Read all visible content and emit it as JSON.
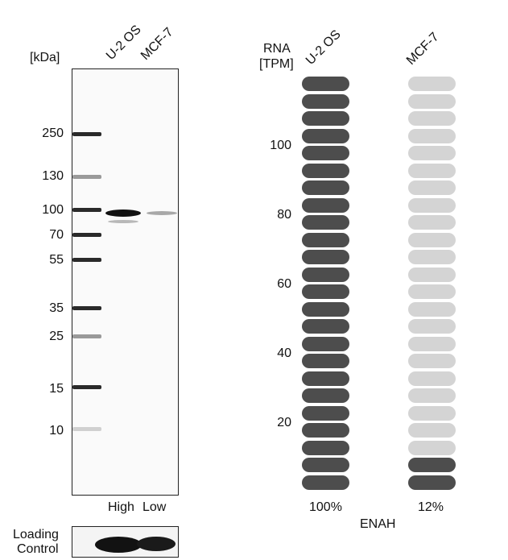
{
  "western_blot": {
    "unit_label": "[kDa]",
    "lanes": [
      "U-2 OS",
      "MCF-7"
    ],
    "markers": [
      "250",
      "130",
      "100",
      "70",
      "55",
      "35",
      "25",
      "15",
      "10"
    ],
    "lane_expression": [
      "High",
      "Low"
    ],
    "loading_control_label_line1": "Loading",
    "loading_control_label_line2": "Control"
  },
  "rna": {
    "label_line1": "RNA",
    "label_line2": "[TPM]",
    "columns": [
      {
        "name": "U-2 OS",
        "filled": 24,
        "total": 24,
        "percent": "100%"
      },
      {
        "name": "MCF-7",
        "filled": 2,
        "total": 24,
        "percent": "12%"
      }
    ],
    "axis_ticks": [
      "100",
      "80",
      "60",
      "40",
      "20"
    ],
    "gene": "ENAH",
    "colors": {
      "filled": "#4d4d4d",
      "empty": "#d4d4d4"
    }
  }
}
